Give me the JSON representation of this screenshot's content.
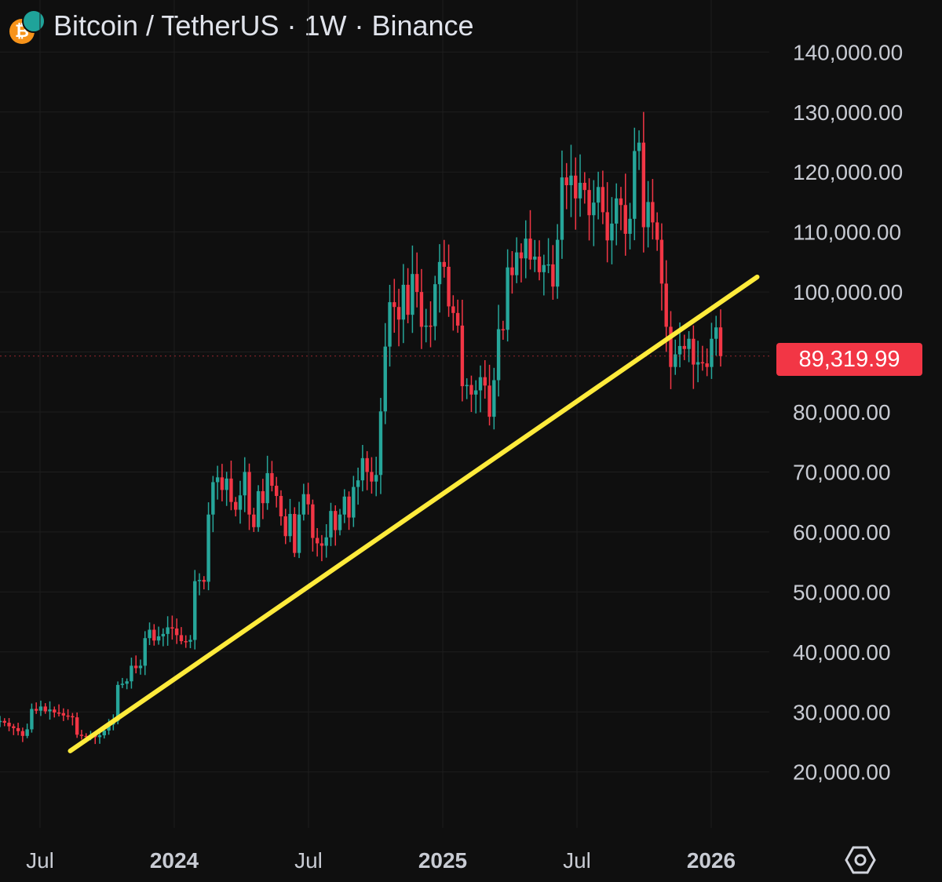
{
  "header": {
    "title": "Bitcoin / TetherUS · 1W · Binance",
    "coin_icon": "bitcoin-icon",
    "exchange_icon": "binance-badge-icon"
  },
  "current_price": {
    "label": "89,319.99",
    "value": 89319.99,
    "color": "#f23645"
  },
  "colors": {
    "up": "#26a69a",
    "down": "#f23645",
    "trendline": "#ffeb3b",
    "background": "#0f0f0f",
    "grid": "#1e1e1e"
  },
  "settings_icon": "settings-hexagon-icon",
  "chart_data": {
    "type": "candlestick",
    "title": "Bitcoin / TetherUS · 1W · Binance",
    "timeframe": "1W",
    "ylim": [
      10000,
      145000
    ],
    "y_axis_position": "right",
    "y_ticks": [
      "140,000.00",
      "130,000.00",
      "120,000.00",
      "110,000.00",
      "100,000.00",
      "80,000.00",
      "70,000.00",
      "60,000.00",
      "50,000.00",
      "40,000.00",
      "30,000.00",
      "20,000.00"
    ],
    "x_ticks": [
      {
        "label": "Jul",
        "date": "2023-07",
        "bold": false
      },
      {
        "label": "2024",
        "date": "2024-01",
        "bold": true
      },
      {
        "label": "Jul",
        "date": "2024-07",
        "bold": false
      },
      {
        "label": "2025",
        "date": "2025-01",
        "bold": true
      },
      {
        "label": "Jul",
        "date": "2025-07",
        "bold": false
      },
      {
        "label": "2026",
        "date": "2026-01",
        "bold": true
      }
    ],
    "grid": true,
    "price_path_weekly_close": [
      28500,
      28200,
      27600,
      27300,
      26800,
      26000,
      27100,
      30500,
      30200,
      30900,
      30100,
      30400,
      29900,
      29800,
      29400,
      29300,
      29100,
      26200,
      26000,
      25900,
      26200,
      25800,
      26100,
      26900,
      27900,
      28500,
      34500,
      34700,
      35100,
      37700,
      37300,
      37700,
      42300,
      43700,
      41900,
      42600,
      43000,
      44100,
      43900,
      42800,
      41800,
      41700,
      42000,
      51800,
      52000,
      51700,
      62900,
      68300,
      69100,
      67000,
      68900,
      65000,
      63700,
      66100,
      70000,
      62900,
      60800,
      66800,
      64800,
      69800,
      67700,
      66000,
      62600,
      59300,
      63000,
      56500,
      62900,
      66300,
      64600,
      59000,
      58100,
      57700,
      59100,
      63500,
      60300,
      62900,
      65900,
      62400,
      67500,
      68600,
      72300,
      70000,
      68400,
      69500,
      80100,
      90900,
      98300,
      97500,
      95400,
      101200,
      96200,
      103000,
      100000,
      94200,
      94400,
      94300,
      101300,
      105000,
      104200,
      97600,
      96500,
      94400,
      84300,
      84500,
      82900,
      83600,
      85800,
      84400,
      79200,
      85300,
      93800,
      93700,
      104100,
      102800,
      106600,
      105600,
      108900,
      105400,
      105900,
      103300,
      104500,
      104600,
      100900,
      108700,
      119100,
      117800,
      119400,
      115600,
      118200,
      117000,
      112800,
      114900,
      117500,
      113300,
      108600,
      111400,
      115600,
      114500,
      109700,
      112200,
      123500,
      124900,
      110800,
      115000,
      111600,
      108700,
      101400,
      94200,
      87500,
      89600,
      91000,
      90500,
      92200,
      87900,
      88300,
      88100,
      87500,
      92200,
      94100,
      89320
    ]
  },
  "trendline": {
    "label": "",
    "start": {
      "date": "2023-08",
      "value": 23500
    },
    "end": {
      "date": "2026-02",
      "value": 102500
    }
  }
}
